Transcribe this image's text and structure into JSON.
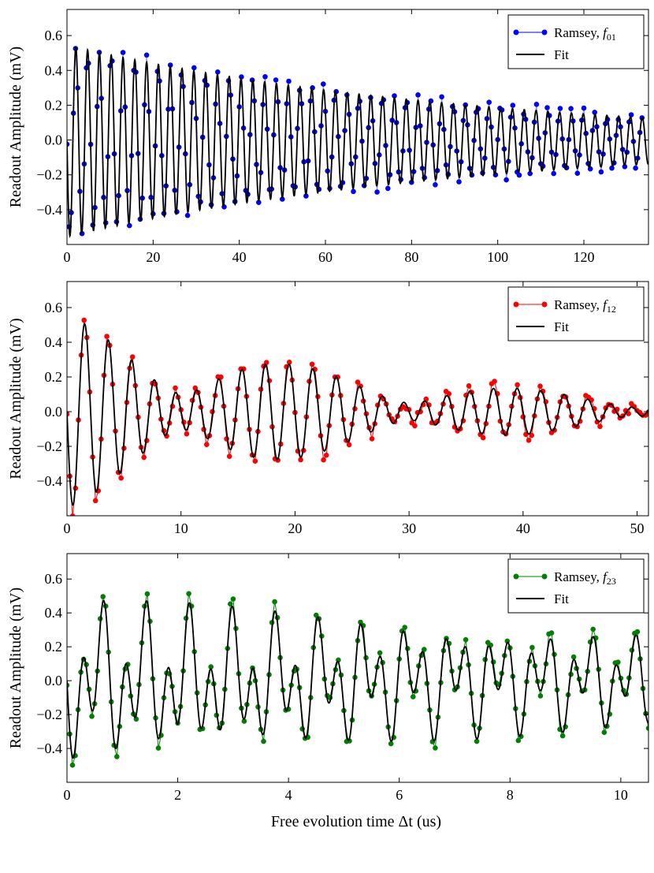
{
  "figure": {
    "xlabel": "Free evolution time Δt (us)"
  },
  "chart_data": [
    {
      "type": "line",
      "panel": "top",
      "ylabel": "Readout Amplitude (mV)",
      "xlim": [
        0,
        135
      ],
      "ylim": [
        -0.6,
        0.75
      ],
      "xticks": [
        0,
        20,
        40,
        60,
        80,
        100,
        120
      ],
      "yticks": [
        -0.4,
        -0.2,
        0.0,
        0.2,
        0.4,
        0.6
      ],
      "ytick_labels": [
        "−0.4",
        "−0.2",
        "0.0",
        "0.2",
        "0.4",
        "0.6"
      ],
      "legend_placement": "top-right",
      "grid": false,
      "legend": {
        "ramsey_label": "Ramsey, ",
        "ramsey_sym": "f",
        "ramsey_sub": "01",
        "fit_label": "Fit"
      },
      "colors": {
        "data": "#0000ff",
        "fit": "#000000"
      },
      "fit_model": {
        "amplitude": 0.55,
        "decay_time": 95,
        "frequency": 0.365,
        "phase": 1.5708,
        "offset": -0.005
      },
      "data_model": {
        "amplitude": 0.56,
        "decay_time": 100,
        "frequency": 0.365,
        "phase": 1.5708,
        "offset": -0.005,
        "x_start": 0,
        "x_step": 0.5,
        "x_end": 133.5,
        "line_opacity": 0.45
      }
    },
    {
      "type": "line",
      "panel": "middle",
      "ylabel": "Readout Amplitude (mV)",
      "xlim": [
        0,
        51
      ],
      "ylim": [
        -0.6,
        0.75
      ],
      "xticks": [
        0,
        10,
        20,
        30,
        40,
        50
      ],
      "yticks": [
        -0.4,
        -0.2,
        0.0,
        0.2,
        0.4,
        0.6
      ],
      "ytick_labels": [
        "−0.4",
        "−0.2",
        "0.0",
        "0.2",
        "0.4",
        "0.6"
      ],
      "legend_placement": "top-right",
      "grid": false,
      "legend": {
        "ramsey_label": "Ramsey, ",
        "ramsey_sym": "f",
        "ramsey_sub": "12",
        "fit_label": "Fit"
      },
      "colors": {
        "data": "#ff0000",
        "fit": "#000000"
      },
      "fit_model": {
        "a1": 0.35,
        "f1": 0.5,
        "a2": 0.2,
        "f2": 0.45,
        "decay_time": 28,
        "phase": 1.5708,
        "offset": 0.0
      },
      "data_model": {
        "a1": 0.37,
        "f1": 0.5,
        "a2": 0.22,
        "f2": 0.45,
        "decay_time": 30,
        "phase": 1.5708,
        "offset": 0.0,
        "x_start": 0,
        "x_step": 0.25,
        "x_end": 51,
        "line_opacity": 1
      }
    },
    {
      "type": "line",
      "panel": "bottom",
      "ylabel": "Readout Amplitude (mV)",
      "xlim": [
        0,
        10.5
      ],
      "ylim": [
        -0.6,
        0.75
      ],
      "xticks": [
        0,
        2,
        4,
        6,
        8,
        10
      ],
      "yticks": [
        -0.4,
        -0.2,
        0.0,
        0.2,
        0.4,
        0.6
      ],
      "ytick_labels": [
        "−0.4",
        "−0.2",
        "0.0",
        "0.2",
        "0.4",
        "0.6"
      ],
      "legend_placement": "top-right",
      "grid": false,
      "legend": {
        "ramsey_label": "Ramsey, ",
        "ramsey_sym": "f",
        "ramsey_sub": "23",
        "fit_label": "Fit"
      },
      "colors": {
        "data": "#008000",
        "fit": "#000000"
      },
      "fit_model": {
        "a1": 0.3,
        "f1": 2.6,
        "a2": 0.22,
        "f2": 1.25,
        "decay_time": 18,
        "phase": 1.5708,
        "offset": 0.0
      },
      "data_model": {
        "a1": 0.32,
        "f1": 2.6,
        "a2": 0.24,
        "f2": 1.25,
        "decay_time": 19,
        "phase": 1.5708,
        "offset": 0.0,
        "x_start": 0,
        "x_step": 0.05,
        "x_end": 10.5,
        "line_opacity": 1
      }
    }
  ]
}
